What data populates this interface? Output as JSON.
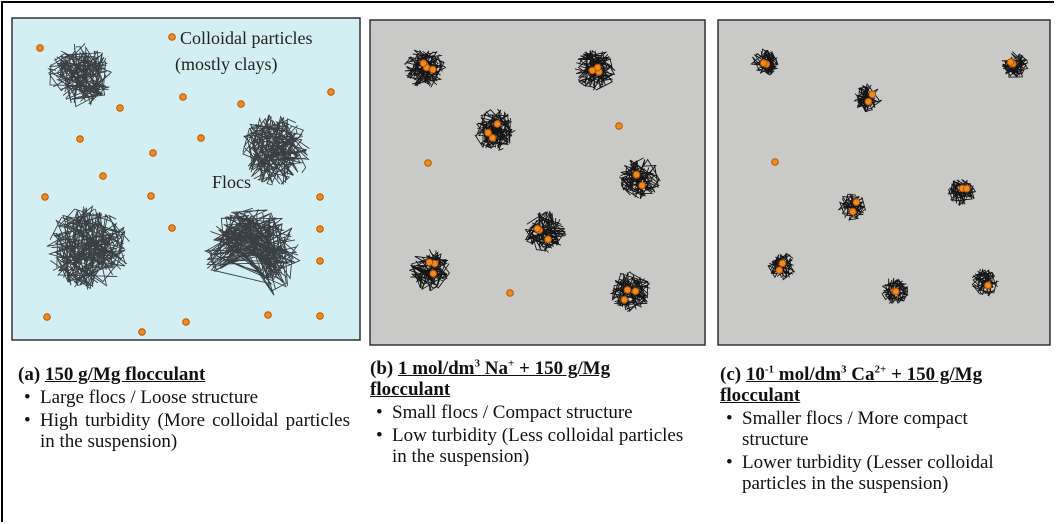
{
  "panels": [
    {
      "label": "(a)",
      "title": [
        "150 g/Mg flocculant"
      ],
      "annotations": [
        "Colloidal particles",
        "(mostly clays)",
        "Flocs"
      ],
      "bullets": [
        "Large flocs / Loose structure",
        "High turbidity (More colloidal particles in the suspension)"
      ]
    },
    {
      "label": "(b)",
      "title": [
        "1 mol/dm",
        "3",
        " Na",
        "+",
        " + 150 g/Mg flocculant"
      ],
      "bullets": [
        "Small flocs / Compact structure",
        "Low turbidity (Less colloidal particles in the suspension)"
      ]
    },
    {
      "label": "(c)",
      "title": [
        "10",
        "-1",
        " mol/dm",
        "3",
        " Ca",
        "2+",
        " + 150 g/Mg flocculant"
      ],
      "bullets": [
        "Smaller flocs / More compact structure",
        "Lower turbidity (Lesser colloidal particles in the suspension)"
      ]
    }
  ]
}
